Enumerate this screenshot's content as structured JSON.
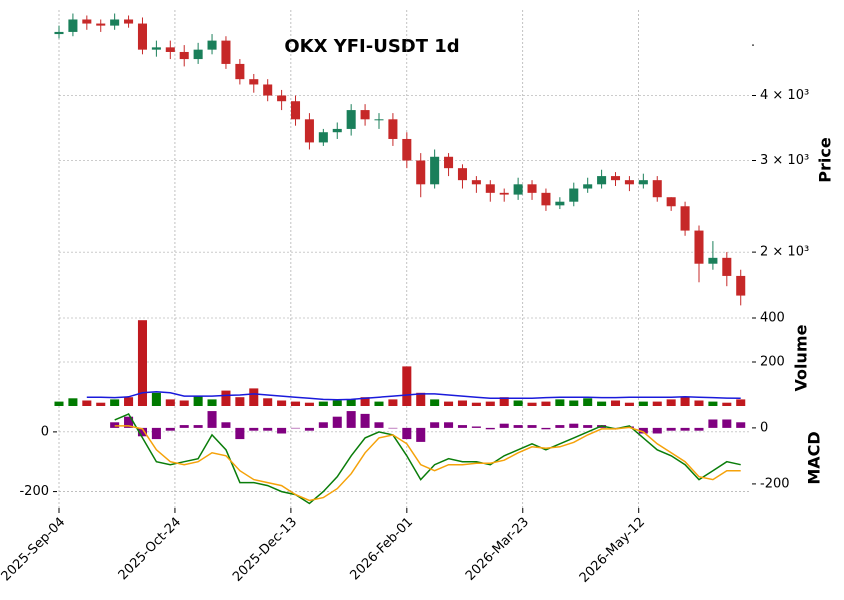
{
  "chart_data": {
    "type": "candlestick",
    "title": "OKX YFI-USDT 1d",
    "x": [
      "2025-Sep-04",
      "2025-Sep-10",
      "2025-Sep-16",
      "2025-Sep-22",
      "2025-Sep-28",
      "2025-Oct-04",
      "2025-Oct-10",
      "2025-Oct-16",
      "2025-Oct-22",
      "2025-Oct-28",
      "2025-Nov-03",
      "2025-Nov-09",
      "2025-Nov-15",
      "2025-Nov-21",
      "2025-Nov-27",
      "2025-Dec-03",
      "2025-Dec-09",
      "2025-Dec-15",
      "2025-Dec-21",
      "2025-Dec-27",
      "2026-Jan-02",
      "2026-Jan-08",
      "2026-Jan-14",
      "2026-Jan-20",
      "2026-Jan-26",
      "2026-Feb-01",
      "2026-Feb-07",
      "2026-Feb-13",
      "2026-Feb-19",
      "2026-Feb-25",
      "2026-Mar-03",
      "2026-Mar-09",
      "2026-Mar-15",
      "2026-Mar-21",
      "2026-Mar-27",
      "2026-Apr-02",
      "2026-Apr-08",
      "2026-Apr-14",
      "2026-Apr-20",
      "2026-Apr-26",
      "2026-May-02",
      "2026-May-08",
      "2026-May-14",
      "2026-May-20",
      "2026-May-26",
      "2026-Jun-01",
      "2026-Jun-07",
      "2026-Jun-13",
      "2026-Jun-19",
      "2026-Jun-25"
    ],
    "xlim": [
      "2025-Sep-04",
      "2026-Jun-29"
    ],
    "xticks": [
      "2025-Sep-04",
      "2025-Oct-24",
      "2025-Dec-13",
      "2026-Feb-01",
      "2026-Mar-23",
      "2026-May-12"
    ],
    "open": [
      5250,
      5300,
      5600,
      5500,
      5450,
      5600,
      5500,
      4900,
      4950,
      4850,
      4700,
      4900,
      5100,
      4600,
      4300,
      4200,
      4000,
      3900,
      3600,
      3250,
      3400,
      3450,
      3750,
      3600,
      3600,
      3300,
      3000,
      2700,
      3050,
      2900,
      2750,
      2700,
      2600,
      2580,
      2700,
      2600,
      2460,
      2500,
      2650,
      2700,
      2800,
      2750,
      2700,
      2750,
      2550,
      2450,
      2200,
      1900,
      1950,
      1800
    ],
    "high": [
      5450,
      5750,
      5700,
      5600,
      5750,
      5700,
      5650,
      5100,
      5100,
      5000,
      5050,
      5250,
      5200,
      4700,
      4400,
      4300,
      4100,
      4000,
      3700,
      3450,
      3550,
      3850,
      3850,
      3700,
      3700,
      3400,
      3100,
      3150,
      3100,
      2950,
      2800,
      2750,
      2650,
      2780,
      2750,
      2650,
      2550,
      2720,
      2780,
      2880,
      2850,
      2800,
      2830,
      2800,
      2550,
      2500,
      2250,
      2100,
      2000,
      1850
    ],
    "low": [
      5150,
      5200,
      5350,
      5300,
      5350,
      5400,
      4800,
      4750,
      4700,
      4550,
      4600,
      4800,
      4500,
      4200,
      4050,
      3900,
      3750,
      3500,
      3150,
      3200,
      3300,
      3350,
      3500,
      3450,
      3200,
      2900,
      2550,
      2650,
      2800,
      2650,
      2600,
      2500,
      2500,
      2520,
      2520,
      2400,
      2420,
      2450,
      2600,
      2650,
      2680,
      2620,
      2650,
      2500,
      2400,
      2150,
      1750,
      1850,
      1720,
      1580
    ],
    "close": [
      5300,
      5600,
      5500,
      5450,
      5600,
      5500,
      4900,
      4950,
      4850,
      4700,
      4900,
      5100,
      4600,
      4300,
      4200,
      4000,
      3900,
      3600,
      3250,
      3400,
      3450,
      3750,
      3600,
      3600,
      3300,
      3000,
      2700,
      3050,
      2900,
      2750,
      2700,
      2600,
      2580,
      2700,
      2600,
      2460,
      2500,
      2650,
      2700,
      2800,
      2750,
      2700,
      2750,
      2550,
      2450,
      2200,
      1900,
      1950,
      1800,
      1650
    ],
    "up_color": "#1a7f5a",
    "down_color": "#c62828",
    "ylabel": "Price",
    "yscale": "log",
    "ylim": [
      1548,
      5840
    ],
    "yticks": [
      {
        "value": 2000,
        "label": "2 × 10³"
      },
      {
        "value": 3000,
        "label": "3 × 10³"
      },
      {
        "value": 4000,
        "label": "4 × 10³"
      }
    ],
    "yminorticks": [
      5000
    ],
    "grid": true,
    "volume": {
      "type": "bar",
      "ylabel": "Volume",
      "values": [
        20,
        35,
        25,
        15,
        30,
        40,
        390,
        60,
        30,
        25,
        45,
        30,
        70,
        40,
        80,
        35,
        25,
        20,
        15,
        20,
        25,
        30,
        40,
        20,
        30,
        180,
        60,
        30,
        20,
        25,
        15,
        20,
        40,
        25,
        15,
        20,
        30,
        25,
        35,
        20,
        25,
        15,
        20,
        20,
        30,
        40,
        25,
        20,
        15,
        30
      ],
      "up_color": "#007a00",
      "down_color": "#c0191f",
      "ylim": [
        0,
        400
      ],
      "yticks": [
        200,
        400
      ],
      "ma": {
        "color": "#1a1adb",
        "values": [
          null,
          null,
          40,
          40,
          38,
          42,
          60,
          65,
          60,
          45,
          45,
          45,
          48,
          50,
          55,
          50,
          45,
          40,
          35,
          30,
          28,
          30,
          35,
          40,
          45,
          50,
          55,
          55,
          50,
          45,
          40,
          35,
          35,
          35,
          35,
          38,
          40,
          40,
          40,
          38,
          38,
          40,
          40,
          40,
          40,
          42,
          40,
          38,
          36,
          35
        ]
      }
    },
    "macd": {
      "type": "line",
      "ylabel": "MACD",
      "ylim": [
        -255,
        80
      ],
      "yticks": [
        0,
        -200
      ],
      "y2lim": [
        -286,
        71
      ],
      "y2ticks": [
        0,
        -200
      ],
      "series": [
        {
          "color": "#0a7d0a",
          "values": [
            null,
            null,
            null,
            null,
            40,
            60,
            -20,
            -100,
            -110,
            -100,
            -90,
            -10,
            -60,
            -170,
            -170,
            -180,
            -200,
            -210,
            -240,
            -200,
            -150,
            -80,
            -20,
            0,
            -10,
            -80,
            -160,
            -110,
            -90,
            -100,
            -100,
            -110,
            -80,
            -60,
            -40,
            -60,
            -40,
            -20,
            0,
            20,
            10,
            20,
            -20,
            -60,
            -80,
            -110,
            -160,
            -130,
            -100,
            -110
          ]
        },
        {
          "color": "#f5a20a",
          "values": [
            null,
            null,
            null,
            null,
            20,
            20,
            10,
            -60,
            -100,
            -110,
            -100,
            -70,
            -80,
            -130,
            -160,
            -170,
            -180,
            -210,
            -230,
            -220,
            -190,
            -140,
            -70,
            -20,
            -10,
            -40,
            -110,
            -130,
            -110,
            -110,
            -105,
            -105,
            -95,
            -70,
            -50,
            -55,
            -50,
            -35,
            -10,
            10,
            10,
            15,
            0,
            -40,
            -70,
            -100,
            -150,
            -160,
            -130,
            -130
          ]
        },
        {
          "type": "bar",
          "axis": "y2",
          "color": "#800080",
          "values": [
            null,
            null,
            null,
            null,
            20,
            40,
            -30,
            -40,
            -10,
            10,
            10,
            60,
            20,
            -40,
            -10,
            -10,
            -20,
            0,
            -10,
            20,
            40,
            60,
            50,
            20,
            0,
            -40,
            -50,
            20,
            20,
            10,
            5,
            -5,
            15,
            10,
            10,
            -5,
            10,
            15,
            10,
            10,
            0,
            5,
            -20,
            -20,
            -10,
            -10,
            -10,
            30,
            30,
            20
          ]
        }
      ]
    }
  }
}
